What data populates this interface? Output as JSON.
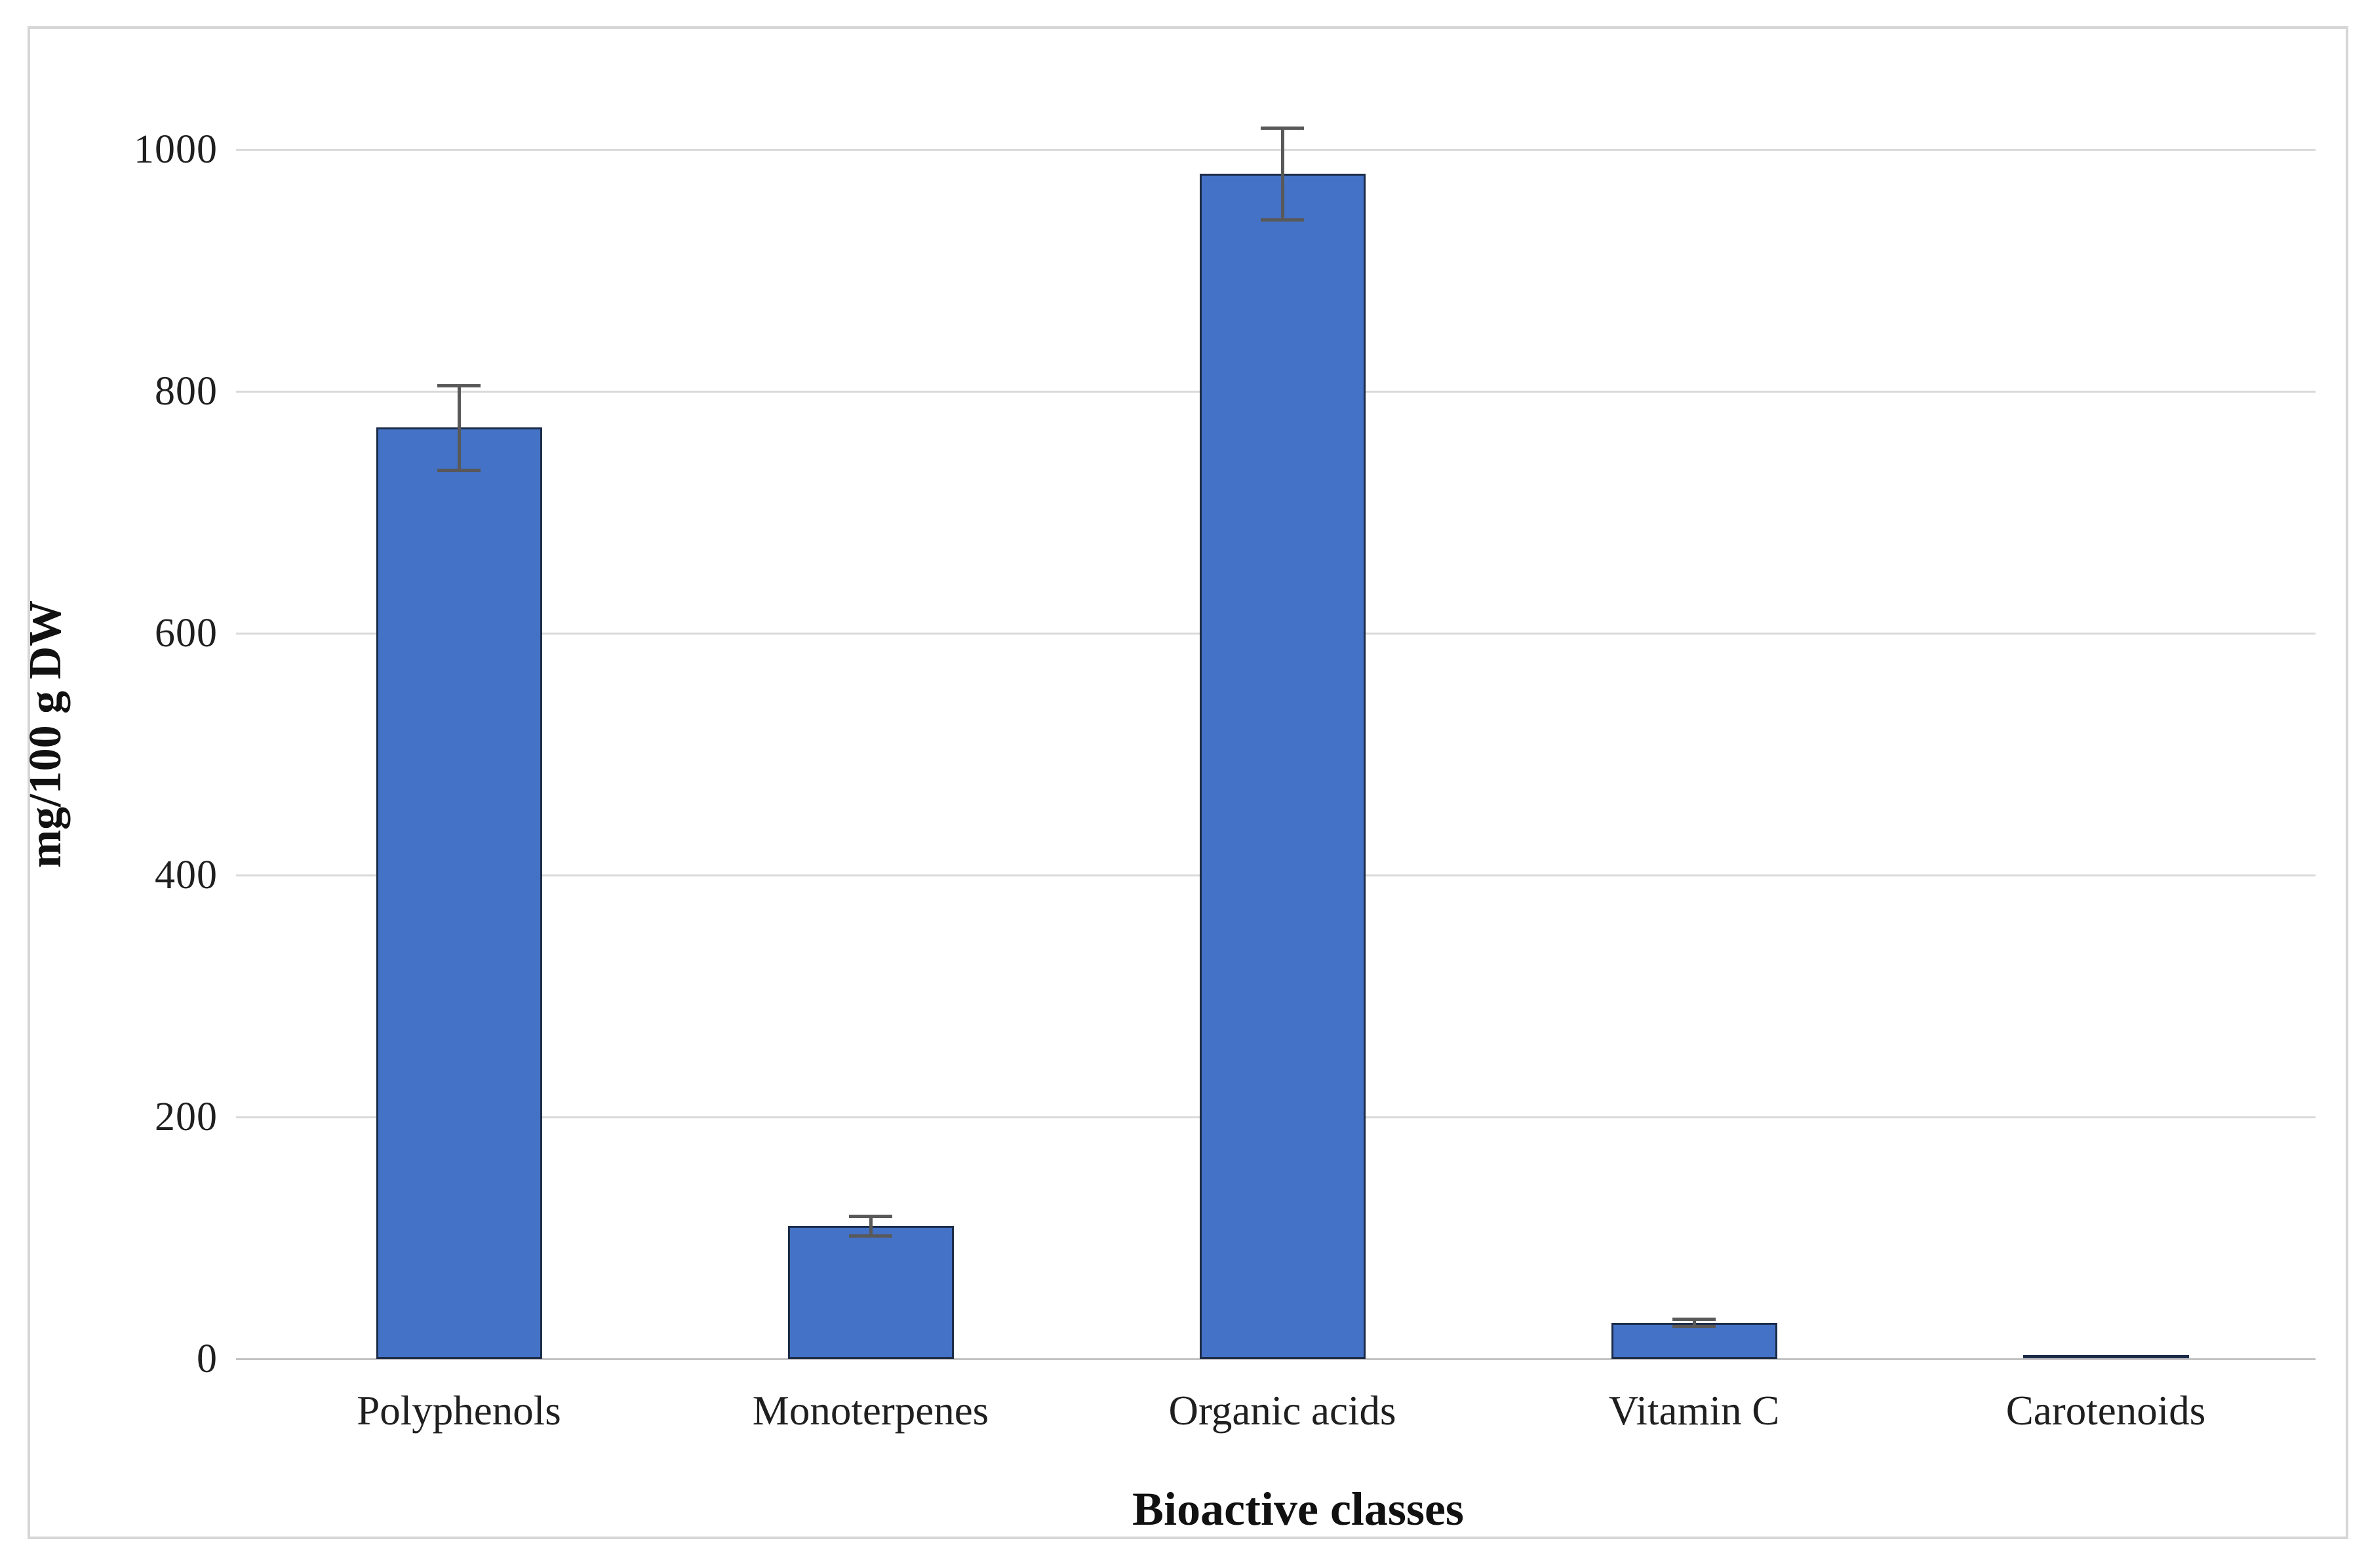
{
  "figure": {
    "background": "#ffffff",
    "border_color": "#d6d6d6"
  },
  "chart_data": {
    "type": "bar",
    "title": "",
    "categories": [
      "Polyphenols",
      "Monoterpenes",
      "Organic acids",
      "Vitamin C",
      "Carotenoids"
    ],
    "values": [
      770,
      110,
      980,
      30,
      1.5
    ],
    "error_bars": [
      35,
      8,
      38,
      3,
      0
    ],
    "xlabel": "Bioactive classes",
    "ylabel": "mg/100 g DW",
    "ylim": [
      0,
      1000
    ],
    "yticks": [
      0,
      200,
      400,
      600,
      800,
      1000
    ],
    "ytick_labels": [
      "0",
      "200",
      "400",
      "600",
      "800",
      "1000"
    ],
    "grid": true,
    "legend": false,
    "colors": {
      "bar_fill": "#4472C6",
      "bar_border": "#1C2C48",
      "error_bar": "#595959",
      "gridline": "#D9D9D9",
      "axis_line": "#C2C2C2",
      "text": "#1F1F1F"
    }
  }
}
